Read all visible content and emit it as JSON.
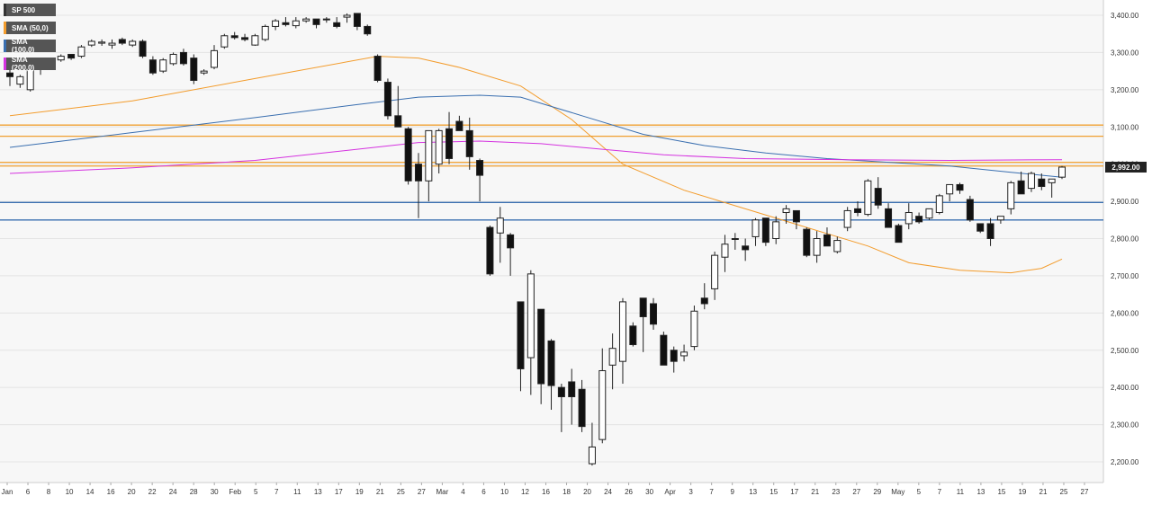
{
  "chart_data": {
    "type": "candlestick",
    "symbol": "SP 500",
    "legend": [
      {
        "label": "SP 500",
        "color": "#333333"
      },
      {
        "label": "SMA (50,0)",
        "color": "#f39c2c"
      },
      {
        "label": "SMA (100,0)",
        "color": "#3a6fb0"
      },
      {
        "label": "SMA (200,0)",
        "color": "#d533e0"
      }
    ],
    "last_price_label": "2,992.00",
    "ylim": [
      2170,
      3430
    ],
    "y_ticks": [
      "3,400.00",
      "3,300.00",
      "3,200.00",
      "3,100.00",
      "3,000.00",
      "2,900.00",
      "2,800.00",
      "2,700.00",
      "2,600.00",
      "2,500.00",
      "2,400.00",
      "2,300.00",
      "2,200.00"
    ],
    "y_tick_values": [
      3400,
      3300,
      3200,
      3100,
      3000,
      2900,
      2800,
      2700,
      2600,
      2500,
      2400,
      2300,
      2200
    ],
    "x_ticks": [
      "Jan",
      "6",
      "8",
      "10",
      "14",
      "16",
      "20",
      "22",
      "24",
      "28",
      "30",
      "Feb",
      "5",
      "7",
      "11",
      "13",
      "17",
      "19",
      "21",
      "25",
      "27",
      "Mar",
      "4",
      "6",
      "10",
      "12",
      "16",
      "18",
      "20",
      "24",
      "26",
      "30",
      "Apr",
      "3",
      "7",
      "9",
      "13",
      "15",
      "17",
      "21",
      "23",
      "27",
      "29",
      "May",
      "5",
      "7",
      "11",
      "13",
      "15",
      "19",
      "21",
      "25",
      "27"
    ],
    "horizontal_levels": [
      {
        "value": 3105,
        "color": "#f0a030"
      },
      {
        "value": 3075,
        "color": "#f0a030"
      },
      {
        "value": 3005,
        "color": "#f0a030"
      },
      {
        "value": 2995,
        "color": "#f0a030"
      },
      {
        "value": 2897,
        "color": "#3a6fb0"
      },
      {
        "value": 2850,
        "color": "#3a6fb0"
      }
    ],
    "candles": [
      {
        "o": 3245,
        "h": 3260,
        "l": 3210,
        "c": 3235
      },
      {
        "o": 3215,
        "h": 3240,
        "l": 3205,
        "c": 3235
      },
      {
        "o": 3200,
        "h": 3260,
        "l": 3195,
        "c": 3255
      },
      {
        "o": 3255,
        "h": 3270,
        "l": 3240,
        "c": 3265
      },
      {
        "o": 3265,
        "h": 3285,
        "l": 3260,
        "c": 3280
      },
      {
        "o": 3280,
        "h": 3295,
        "l": 3275,
        "c": 3290
      },
      {
        "o": 3295,
        "h": 3290,
        "l": 3280,
        "c": 3285
      },
      {
        "o": 3290,
        "h": 3320,
        "l": 3285,
        "c": 3315
      },
      {
        "o": 3320,
        "h": 3335,
        "l": 3315,
        "c": 3330
      },
      {
        "o": 3325,
        "h": 3335,
        "l": 3318,
        "c": 3328
      },
      {
        "o": 3320,
        "h": 3335,
        "l": 3310,
        "c": 3325
      },
      {
        "o": 3335,
        "h": 3340,
        "l": 3320,
        "c": 3325
      },
      {
        "o": 3320,
        "h": 3335,
        "l": 3315,
        "c": 3330
      },
      {
        "o": 3330,
        "h": 3335,
        "l": 3285,
        "c": 3290
      },
      {
        "o": 3280,
        "h": 3290,
        "l": 3240,
        "c": 3245
      },
      {
        "o": 3250,
        "h": 3285,
        "l": 3245,
        "c": 3280
      },
      {
        "o": 3270,
        "h": 3300,
        "l": 3265,
        "c": 3295
      },
      {
        "o": 3300,
        "h": 3310,
        "l": 3265,
        "c": 3270
      },
      {
        "o": 3285,
        "h": 3295,
        "l": 3215,
        "c": 3225
      },
      {
        "o": 3245,
        "h": 3255,
        "l": 3240,
        "c": 3250
      },
      {
        "o": 3260,
        "h": 3320,
        "l": 3255,
        "c": 3305
      },
      {
        "o": 3315,
        "h": 3350,
        "l": 3310,
        "c": 3345
      },
      {
        "o": 3345,
        "h": 3355,
        "l": 3335,
        "c": 3340
      },
      {
        "o": 3340,
        "h": 3350,
        "l": 3330,
        "c": 3335
      },
      {
        "o": 3320,
        "h": 3350,
        "l": 3318,
        "c": 3345
      },
      {
        "o": 3335,
        "h": 3375,
        "l": 3330,
        "c": 3370
      },
      {
        "o": 3370,
        "h": 3390,
        "l": 3360,
        "c": 3385
      },
      {
        "o": 3380,
        "h": 3395,
        "l": 3370,
        "c": 3375
      },
      {
        "o": 3372,
        "h": 3395,
        "l": 3365,
        "c": 3385
      },
      {
        "o": 3385,
        "h": 3395,
        "l": 3380,
        "c": 3390
      },
      {
        "o": 3390,
        "h": 3390,
        "l": 3365,
        "c": 3375
      },
      {
        "o": 3390,
        "h": 3395,
        "l": 3380,
        "c": 3390
      },
      {
        "o": 3380,
        "h": 3395,
        "l": 3365,
        "c": 3370
      },
      {
        "o": 3395,
        "h": 3405,
        "l": 3380,
        "c": 3400
      },
      {
        "o": 3405,
        "h": 3405,
        "l": 3360,
        "c": 3370
      },
      {
        "o": 3370,
        "h": 3375,
        "l": 3345,
        "c": 3350
      },
      {
        "o": 3290,
        "h": 3295,
        "l": 3220,
        "c": 3225
      },
      {
        "o": 3220,
        "h": 3230,
        "l": 3120,
        "c": 3130
      },
      {
        "o": 3130,
        "h": 3210,
        "l": 3100,
        "c": 3100
      },
      {
        "o": 3095,
        "h": 3100,
        "l": 2945,
        "c": 2955
      },
      {
        "o": 3000,
        "h": 3030,
        "l": 2855,
        "c": 2955
      },
      {
        "o": 2955,
        "h": 3090,
        "l": 2900,
        "c": 3090
      },
      {
        "o": 3000,
        "h": 3095,
        "l": 2975,
        "c": 3090
      },
      {
        "o": 3095,
        "h": 3140,
        "l": 3000,
        "c": 3015
      },
      {
        "o": 3115,
        "h": 3130,
        "l": 3090,
        "c": 3090
      },
      {
        "o": 3090,
        "h": 3125,
        "l": 2985,
        "c": 3020
      },
      {
        "o": 3010,
        "h": 3015,
        "l": 2900,
        "c": 2970
      },
      {
        "o": 2830,
        "h": 2835,
        "l": 2700,
        "c": 2705
      },
      {
        "o": 2815,
        "h": 2885,
        "l": 2735,
        "c": 2855
      },
      {
        "o": 2810,
        "h": 2815,
        "l": 2700,
        "c": 2775
      },
      {
        "o": 2630,
        "h": 2630,
        "l": 2390,
        "c": 2450
      },
      {
        "o": 2480,
        "h": 2715,
        "l": 2380,
        "c": 2705
      },
      {
        "o": 2610,
        "h": 2610,
        "l": 2355,
        "c": 2410
      },
      {
        "o": 2525,
        "h": 2530,
        "l": 2340,
        "c": 2405
      },
      {
        "o": 2400,
        "h": 2410,
        "l": 2280,
        "c": 2375
      },
      {
        "o": 2415,
        "h": 2450,
        "l": 2300,
        "c": 2375
      },
      {
        "o": 2395,
        "h": 2420,
        "l": 2280,
        "c": 2295
      },
      {
        "o": 2195,
        "h": 2305,
        "l": 2190,
        "c": 2240
      },
      {
        "o": 2260,
        "h": 2505,
        "l": 2250,
        "c": 2445
      },
      {
        "o": 2460,
        "h": 2545,
        "l": 2395,
        "c": 2505
      },
      {
        "o": 2470,
        "h": 2640,
        "l": 2410,
        "c": 2630
      },
      {
        "o": 2565,
        "h": 2575,
        "l": 2510,
        "c": 2515
      },
      {
        "o": 2640,
        "h": 2640,
        "l": 2495,
        "c": 2590
      },
      {
        "o": 2625,
        "h": 2640,
        "l": 2555,
        "c": 2570
      },
      {
        "o": 2540,
        "h": 2550,
        "l": 2460,
        "c": 2460
      },
      {
        "o": 2500,
        "h": 2510,
        "l": 2440,
        "c": 2470
      },
      {
        "o": 2485,
        "h": 2515,
        "l": 2470,
        "c": 2495
      },
      {
        "o": 2510,
        "h": 2620,
        "l": 2500,
        "c": 2605
      },
      {
        "o": 2640,
        "h": 2680,
        "l": 2610,
        "c": 2625
      },
      {
        "o": 2665,
        "h": 2765,
        "l": 2635,
        "c": 2755
      },
      {
        "o": 2750,
        "h": 2810,
        "l": 2710,
        "c": 2785
      },
      {
        "o": 2800,
        "h": 2815,
        "l": 2770,
        "c": 2800
      },
      {
        "o": 2780,
        "h": 2800,
        "l": 2740,
        "c": 2770
      },
      {
        "o": 2805,
        "h": 2855,
        "l": 2780,
        "c": 2850
      },
      {
        "o": 2855,
        "h": 2855,
        "l": 2780,
        "c": 2790
      },
      {
        "o": 2800,
        "h": 2860,
        "l": 2785,
        "c": 2845
      },
      {
        "o": 2870,
        "h": 2890,
        "l": 2840,
        "c": 2880
      },
      {
        "o": 2875,
        "h": 2875,
        "l": 2825,
        "c": 2845
      },
      {
        "o": 2825,
        "h": 2830,
        "l": 2750,
        "c": 2755
      },
      {
        "o": 2755,
        "h": 2820,
        "l": 2735,
        "c": 2800
      },
      {
        "o": 2810,
        "h": 2830,
        "l": 2780,
        "c": 2780
      },
      {
        "o": 2765,
        "h": 2805,
        "l": 2760,
        "c": 2795
      },
      {
        "o": 2830,
        "h": 2885,
        "l": 2820,
        "c": 2875
      },
      {
        "o": 2880,
        "h": 2900,
        "l": 2860,
        "c": 2870
      },
      {
        "o": 2865,
        "h": 2960,
        "l": 2860,
        "c": 2955
      },
      {
        "o": 2935,
        "h": 2965,
        "l": 2880,
        "c": 2890
      },
      {
        "o": 2880,
        "h": 2895,
        "l": 2830,
        "c": 2830
      },
      {
        "o": 2835,
        "h": 2840,
        "l": 2790,
        "c": 2790
      },
      {
        "o": 2840,
        "h": 2895,
        "l": 2825,
        "c": 2870
      },
      {
        "o": 2860,
        "h": 2870,
        "l": 2840,
        "c": 2845
      },
      {
        "o": 2855,
        "h": 2880,
        "l": 2850,
        "c": 2880
      },
      {
        "o": 2870,
        "h": 2920,
        "l": 2865,
        "c": 2915
      },
      {
        "o": 2920,
        "h": 2945,
        "l": 2900,
        "c": 2945
      },
      {
        "o": 2945,
        "h": 2950,
        "l": 2920,
        "c": 2930
      },
      {
        "o": 2905,
        "h": 2915,
        "l": 2845,
        "c": 2850
      },
      {
        "o": 2840,
        "h": 2840,
        "l": 2815,
        "c": 2820
      },
      {
        "o": 2840,
        "h": 2855,
        "l": 2780,
        "c": 2800
      },
      {
        "o": 2850,
        "h": 2860,
        "l": 2840,
        "c": 2860
      },
      {
        "o": 2880,
        "h": 2955,
        "l": 2865,
        "c": 2950
      },
      {
        "o": 2955,
        "h": 2980,
        "l": 2930,
        "c": 2920
      },
      {
        "o": 2935,
        "h": 2980,
        "l": 2925,
        "c": 2975
      },
      {
        "o": 2960,
        "h": 2975,
        "l": 2930,
        "c": 2940
      },
      {
        "o": 2950,
        "h": 2960,
        "l": 2910,
        "c": 2960
      },
      {
        "o": 2965,
        "h": 2995,
        "l": 2960,
        "c": 2992
      }
    ],
    "sma_lines": [
      {
        "name": "SMA (50,0)",
        "color": "#f39c2c",
        "points": [
          [
            0,
            3130
          ],
          [
            12,
            3170
          ],
          [
            24,
            3230
          ],
          [
            36,
            3290
          ],
          [
            40,
            3285
          ],
          [
            44,
            3260
          ],
          [
            50,
            3210
          ],
          [
            55,
            3120
          ],
          [
            60,
            3000
          ],
          [
            66,
            2930
          ],
          [
            72,
            2880
          ],
          [
            78,
            2830
          ],
          [
            84,
            2780
          ],
          [
            88,
            2735
          ],
          [
            93,
            2715
          ],
          [
            98,
            2708
          ],
          [
            101,
            2720
          ],
          [
            103,
            2745
          ]
        ]
      },
      {
        "name": "SMA (100,0)",
        "color": "#3a6fb0",
        "points": [
          [
            0,
            3045
          ],
          [
            12,
            3085
          ],
          [
            24,
            3125
          ],
          [
            34,
            3160
          ],
          [
            40,
            3180
          ],
          [
            46,
            3185
          ],
          [
            50,
            3180
          ],
          [
            56,
            3130
          ],
          [
            62,
            3080
          ],
          [
            68,
            3050
          ],
          [
            74,
            3030
          ],
          [
            80,
            3015
          ],
          [
            86,
            3005
          ],
          [
            92,
            2995
          ],
          [
            98,
            2978
          ],
          [
            103,
            2965
          ]
        ]
      },
      {
        "name": "SMA (200,0)",
        "color": "#d533e0",
        "points": [
          [
            0,
            2975
          ],
          [
            12,
            2990
          ],
          [
            24,
            3010
          ],
          [
            34,
            3040
          ],
          [
            40,
            3058
          ],
          [
            46,
            3062
          ],
          [
            52,
            3055
          ],
          [
            58,
            3040
          ],
          [
            64,
            3025
          ],
          [
            72,
            3015
          ],
          [
            82,
            3012
          ],
          [
            92,
            3010
          ],
          [
            103,
            3012
          ]
        ]
      }
    ]
  }
}
